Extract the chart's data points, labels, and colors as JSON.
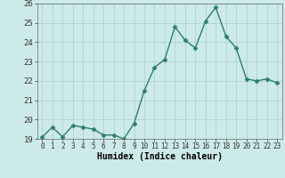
{
  "x": [
    0,
    1,
    2,
    3,
    4,
    5,
    6,
    7,
    8,
    9,
    10,
    11,
    12,
    13,
    14,
    15,
    16,
    17,
    18,
    19,
    20,
    21,
    22,
    23
  ],
  "y": [
    19.1,
    19.6,
    19.1,
    19.7,
    19.6,
    19.5,
    19.2,
    19.2,
    19.0,
    19.8,
    21.5,
    22.7,
    23.1,
    24.8,
    24.1,
    23.7,
    25.1,
    25.8,
    24.3,
    23.7,
    22.1,
    22.0,
    22.1,
    21.9
  ],
  "line_color": "#2e7d6e",
  "bg_color": "#cceae8",
  "grid_color": "#afd4d0",
  "xlabel": "Humidex (Indice chaleur)",
  "ylim": [
    19,
    26
  ],
  "xlim": [
    -0.5,
    23.5
  ],
  "yticks": [
    19,
    20,
    21,
    22,
    23,
    24,
    25,
    26
  ],
  "xticks": [
    0,
    1,
    2,
    3,
    4,
    5,
    6,
    7,
    8,
    9,
    10,
    11,
    12,
    13,
    14,
    15,
    16,
    17,
    18,
    19,
    20,
    21,
    22,
    23
  ],
  "xtick_labels": [
    "0",
    "1",
    "2",
    "3",
    "4",
    "5",
    "6",
    "7",
    "8",
    "9",
    "10",
    "11",
    "12",
    "13",
    "14",
    "15",
    "16",
    "17",
    "18",
    "19",
    "20",
    "21",
    "22",
    "23"
  ],
  "marker": "D",
  "marker_size": 2.5,
  "linewidth": 1.0,
  "xlabel_fontsize": 7,
  "tick_fontsize": 5.5,
  "ytick_fontsize": 6.5
}
